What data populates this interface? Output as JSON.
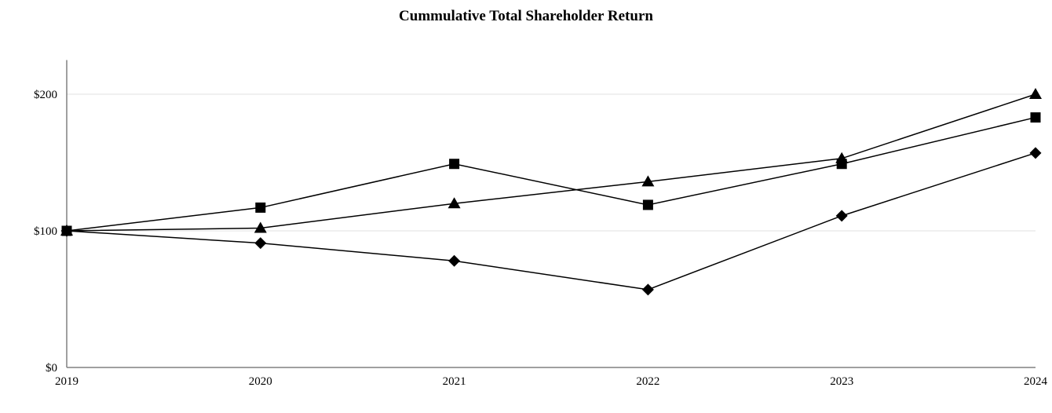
{
  "chart_data": {
    "type": "line",
    "title": "Cummulative Total Shareholder Return",
    "xlabel": "",
    "ylabel": "",
    "x": [
      2019,
      2020,
      2021,
      2022,
      2023,
      2024
    ],
    "x_tick_labels": [
      "2019",
      "2020",
      "2021",
      "2022",
      "2023",
      "2024"
    ],
    "series": [
      {
        "name": "diamond-series",
        "marker": "diamond",
        "values": [
          100,
          91,
          78,
          57,
          111,
          157
        ]
      },
      {
        "name": "square-series",
        "marker": "square",
        "values": [
          100,
          117,
          149,
          119,
          149,
          183
        ]
      },
      {
        "name": "triangle-series",
        "marker": "triangle",
        "values": [
          100,
          102,
          120,
          136,
          153,
          200
        ]
      }
    ],
    "y_ticks": [
      {
        "value": 0,
        "label": "$0"
      },
      {
        "value": 100,
        "label": "$100"
      },
      {
        "value": 200,
        "label": "$200"
      }
    ],
    "ylim": [
      0,
      225
    ],
    "grid": "horizontal at 100 and 200",
    "legend_position": "none",
    "line_color": "#000000",
    "marker_color": "#000000",
    "axis_color": "#808080",
    "gridline_color": "#e2e2e2"
  }
}
